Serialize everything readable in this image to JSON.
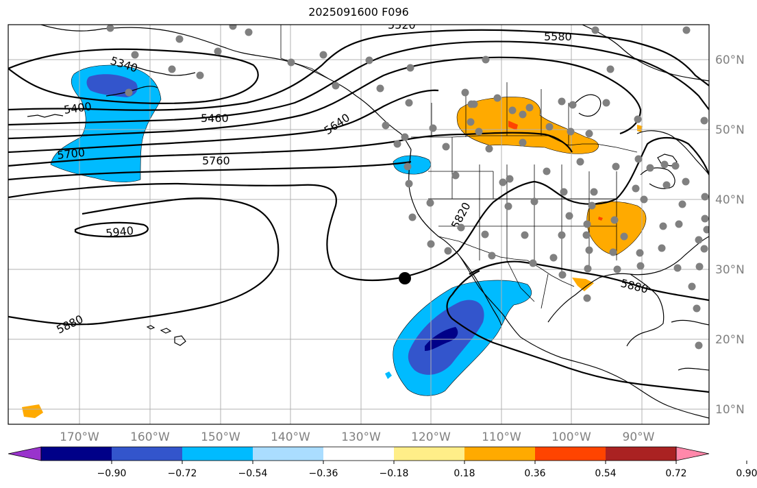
{
  "title": "2025091600 F096",
  "map": {
    "lon_labels": [
      "170°W",
      "160°W",
      "150°W",
      "140°W",
      "130°W",
      "120°W",
      "110°W",
      "100°W",
      "90°W"
    ],
    "lat_labels": [
      "60°N",
      "50°N",
      "40°N",
      "30°N",
      "20°N",
      "10°N"
    ],
    "contour_labels": [
      "5340",
      "5580",
      "5520",
      "5400",
      "5460",
      "5640",
      "5700",
      "5760",
      "5820",
      "5940",
      "5880",
      "5880"
    ]
  },
  "colorbar": {
    "colors": [
      "#9933cc",
      "#000088",
      "#3355cc",
      "#00bbff",
      "#aaddff",
      "#ffffff",
      "#ffee88",
      "#ffaa00",
      "#ff4400",
      "#aa2222",
      "#ff88aa"
    ],
    "tick_labels": [
      "−0.90",
      "−0.72",
      "−0.54",
      "−0.36",
      "−0.18",
      "0.18",
      "0.36",
      "0.54",
      "0.72",
      "0.90"
    ]
  },
  "legend_colors": {
    "purple": "#9933cc",
    "navy": "#000088",
    "blue": "#3355cc",
    "cyan": "#00bbff",
    "lightblue": "#aaddff",
    "yellow": "#ffee88",
    "orange": "#ffaa00",
    "red": "#ff4400"
  }
}
